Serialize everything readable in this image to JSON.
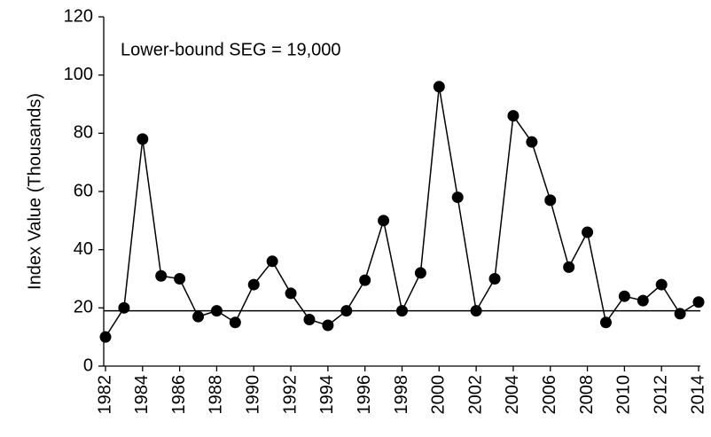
{
  "chart_data": {
    "type": "line",
    "ylabel": "Index Value (Thousands)",
    "annotation": "Lower-bound SEG = 19,000",
    "reference_line": 19,
    "x": [
      1982,
      1983,
      1984,
      1985,
      1986,
      1987,
      1988,
      1989,
      1990,
      1991,
      1992,
      1993,
      1994,
      1995,
      1996,
      1997,
      1998,
      1999,
      2000,
      2001,
      2002,
      2003,
      2004,
      2005,
      2006,
      2007,
      2008,
      2009,
      2010,
      2011,
      2012,
      2013,
      2014
    ],
    "series": [
      {
        "name": "Index Value",
        "color": "#000000",
        "values": [
          10,
          20,
          78,
          31,
          30,
          17,
          19,
          15,
          28,
          36,
          25,
          16,
          14,
          19,
          29.5,
          50,
          19,
          32,
          96,
          58,
          19,
          30,
          86,
          77,
          57,
          34,
          46,
          15,
          24,
          22.5,
          28,
          18,
          22
        ]
      }
    ],
    "xlim": [
      1982,
      2014
    ],
    "xticks": [
      1982,
      1984,
      1986,
      1988,
      1990,
      1992,
      1994,
      1996,
      1998,
      2000,
      2002,
      2004,
      2006,
      2008,
      2010,
      2012,
      2014
    ],
    "ylim": [
      0,
      120
    ],
    "yticks": [
      0,
      20,
      40,
      60,
      80,
      100,
      120
    ],
    "grid": false
  }
}
